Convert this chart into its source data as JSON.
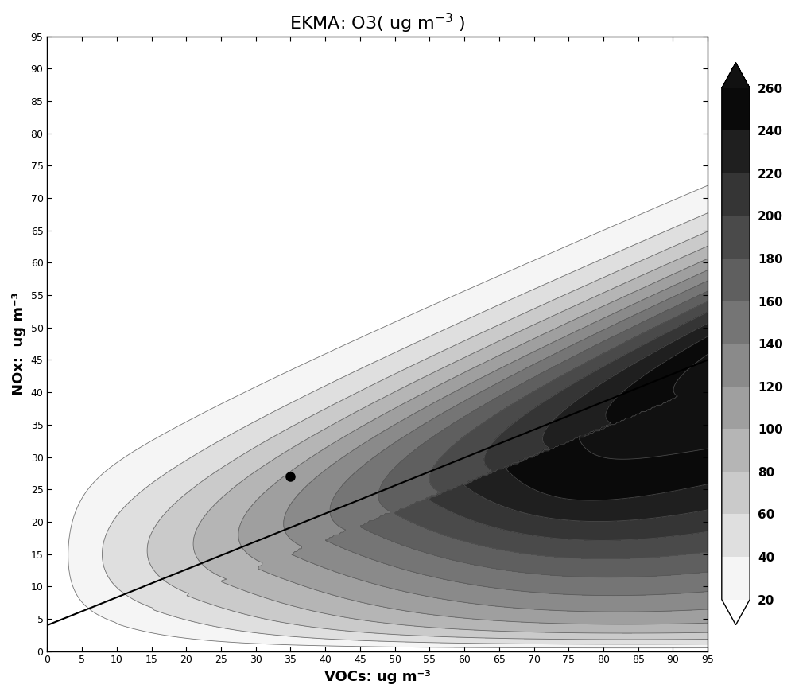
{
  "title": "EKMA: O3( ug m-3 )",
  "xlabel": "VOCs: ug m⁻³",
  "ylabel": "NOx:  ug m⁻³",
  "xlim": [
    0,
    95
  ],
  "ylim": [
    0,
    95
  ],
  "xticks": [
    0,
    5,
    10,
    15,
    20,
    25,
    30,
    35,
    40,
    45,
    50,
    55,
    60,
    65,
    70,
    75,
    80,
    85,
    90,
    95
  ],
  "yticks": [
    0,
    5,
    10,
    15,
    20,
    25,
    30,
    35,
    40,
    45,
    50,
    55,
    60,
    65,
    70,
    75,
    80,
    85,
    90,
    95
  ],
  "contour_levels": [
    20,
    40,
    60,
    80,
    100,
    120,
    140,
    160,
    180,
    200,
    220,
    240,
    260
  ],
  "colorbar_ticks": [
    20,
    40,
    60,
    80,
    100,
    120,
    140,
    160,
    180,
    200,
    220,
    240,
    260
  ],
  "dot_x": 35,
  "dot_y": 27,
  "line_x0": 0,
  "line_y0": 4,
  "line_x1": 95,
  "line_y1": 45,
  "background_color": "#ffffff",
  "title_fontsize": 16,
  "label_fontsize": 13
}
